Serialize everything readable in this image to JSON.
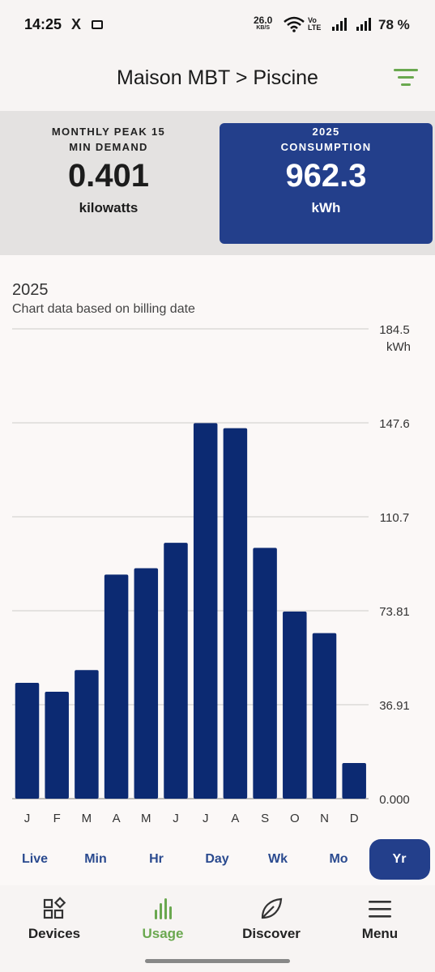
{
  "status_bar": {
    "time": "14:25",
    "x_icon": "X",
    "net_speed": "26.0",
    "net_speed_unit": "KB/S",
    "volte": "Vo",
    "volte2": "LTE",
    "battery": "78 %"
  },
  "header": {
    "title": "Maison MBT > Piscine",
    "filter_icon": "filter-lines-icon",
    "accent_color": "#6aa84f"
  },
  "summary": {
    "peak": {
      "label_line1": "MONTHLY PEAK 15",
      "label_line2": "MIN DEMAND",
      "value": "0.401",
      "unit": "kilowatts"
    },
    "consumption": {
      "label_line1": "2025",
      "label_line2": "CONSUMPTION",
      "value": "962.3",
      "unit": "kWh",
      "color": "#233f8b"
    }
  },
  "chart": {
    "year": "2025",
    "subtitle": "Chart data based on billing date",
    "unit": "kWh"
  },
  "chart_data": {
    "type": "bar",
    "title": "2025",
    "categories": [
      "J",
      "F",
      "M",
      "A",
      "M",
      "J",
      "J",
      "A",
      "S",
      "O",
      "N",
      "D"
    ],
    "values": [
      45.5,
      42.0,
      50.5,
      88.0,
      90.5,
      100.5,
      147.5,
      145.5,
      98.5,
      73.5,
      65.0,
      14.0
    ],
    "ylim": [
      0,
      184.5
    ],
    "yticks": [
      "0.000",
      "36.91",
      "73.81",
      "110.7",
      "147.6",
      "184.5"
    ],
    "ytick_values": [
      0,
      36.91,
      73.81,
      110.7,
      147.6,
      184.5
    ],
    "ylabel": "kWh",
    "bar_color": "#0c2a72",
    "grid": true
  },
  "range_tabs": [
    {
      "label": "Live",
      "active": false
    },
    {
      "label": "Min",
      "active": false
    },
    {
      "label": "Hr",
      "active": false
    },
    {
      "label": "Day",
      "active": false
    },
    {
      "label": "Wk",
      "active": false
    },
    {
      "label": "Mo",
      "active": false
    },
    {
      "label": "Yr",
      "active": true
    }
  ],
  "bottom_nav": [
    {
      "label": "Devices",
      "icon": "devices-grid-icon",
      "active": false
    },
    {
      "label": "Usage",
      "icon": "usage-bars-icon",
      "active": true
    },
    {
      "label": "Discover",
      "icon": "leaf-icon",
      "active": false
    },
    {
      "label": "Menu",
      "icon": "hamburger-menu-icon",
      "active": false
    }
  ]
}
